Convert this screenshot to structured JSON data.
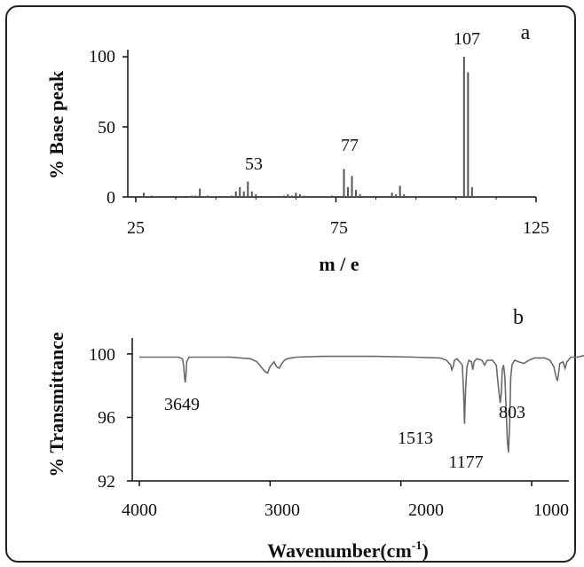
{
  "chart_data": [
    {
      "type": "bar",
      "panel_label": "a",
      "xlabel": "m / e",
      "ylabel": "% Base peak",
      "xlim": [
        25,
        125
      ],
      "ylim": [
        0,
        100
      ],
      "x_ticks": [
        "25",
        "75",
        "125"
      ],
      "y_ticks": [
        "0",
        "50",
        "100"
      ],
      "peak_labels": [
        "53",
        "77",
        "107"
      ],
      "peaks": [
        {
          "x": 27,
          "y": 3
        },
        {
          "x": 29,
          "y": 1
        },
        {
          "x": 39,
          "y": 1
        },
        {
          "x": 40,
          "y": 1
        },
        {
          "x": 41,
          "y": 6
        },
        {
          "x": 43,
          "y": 1
        },
        {
          "x": 49,
          "y": 1
        },
        {
          "x": 50,
          "y": 4
        },
        {
          "x": 51,
          "y": 7
        },
        {
          "x": 52,
          "y": 4
        },
        {
          "x": 53,
          "y": 11
        },
        {
          "x": 54,
          "y": 4
        },
        {
          "x": 55,
          "y": 2
        },
        {
          "x": 62,
          "y": 1
        },
        {
          "x": 63,
          "y": 2
        },
        {
          "x": 64,
          "y": 1
        },
        {
          "x": 65,
          "y": 3
        },
        {
          "x": 66,
          "y": 2
        },
        {
          "x": 67,
          "y": 1
        },
        {
          "x": 74,
          "y": 1
        },
        {
          "x": 77,
          "y": 20
        },
        {
          "x": 78,
          "y": 7
        },
        {
          "x": 79,
          "y": 15
        },
        {
          "x": 80,
          "y": 5
        },
        {
          "x": 81,
          "y": 2
        },
        {
          "x": 89,
          "y": 3
        },
        {
          "x": 90,
          "y": 2
        },
        {
          "x": 91,
          "y": 8
        },
        {
          "x": 92,
          "y": 2
        },
        {
          "x": 107,
          "y": 100
        },
        {
          "x": 108,
          "y": 89
        },
        {
          "x": 109,
          "y": 7
        }
      ]
    },
    {
      "type": "line",
      "panel_label": "b",
      "xlabel": "Wavenumber(cm",
      "xlabel_sup": "-1",
      "xlabel_end": ")",
      "ylabel": "% Transmittance",
      "xlim": [
        4000,
        500
      ],
      "ylim": [
        92,
        101
      ],
      "x_ticks": [
        "4000",
        "3000",
        "2000",
        "1000"
      ],
      "y_ticks": [
        "92",
        "96",
        "100"
      ],
      "peak_labels": [
        "3649",
        "1513",
        "1177",
        "803"
      ],
      "x": [
        4000,
        3700,
        3670,
        3660,
        3655,
        3649,
        3643,
        3638,
        3620,
        3300,
        3150,
        3100,
        3070,
        3040,
        3020,
        3000,
        2970,
        2950,
        2930,
        2910,
        2890,
        2870,
        2840,
        2800,
        2600,
        2200,
        1900,
        1700,
        1650,
        1620,
        1610,
        1600,
        1590,
        1570,
        1530,
        1520,
        1513,
        1505,
        1495,
        1480,
        1460,
        1450,
        1440,
        1420,
        1380,
        1360,
        1340,
        1300,
        1270,
        1255,
        1240,
        1232,
        1225,
        1215,
        1205,
        1195,
        1185,
        1177,
        1168,
        1160,
        1150,
        1130,
        1100,
        1060,
        1020,
        980,
        900,
        860,
        830,
        815,
        803,
        795,
        785,
        760,
        745,
        730,
        700,
        650,
        600,
        550
      ],
      "y": [
        99.8,
        99.8,
        99.7,
        99.2,
        98.6,
        98.2,
        98.7,
        99.5,
        99.8,
        99.8,
        99.7,
        99.5,
        99.2,
        98.9,
        98.8,
        99.2,
        99.5,
        99.2,
        99.1,
        99.4,
        99.6,
        99.7,
        99.75,
        99.8,
        99.85,
        99.85,
        99.8,
        99.75,
        99.6,
        99.3,
        99.0,
        99.2,
        99.6,
        99.7,
        99.3,
        97.5,
        95.6,
        97.8,
        99.2,
        99.6,
        99.5,
        99.0,
        99.5,
        99.7,
        99.6,
        99.3,
        99.6,
        99.6,
        99.3,
        98.0,
        96.9,
        97.5,
        99.0,
        99.3,
        98.6,
        96.5,
        94.5,
        93.8,
        95.5,
        98.5,
        99.3,
        99.6,
        99.5,
        99.4,
        99.6,
        99.75,
        99.75,
        99.6,
        99.2,
        98.6,
        98.3,
        98.7,
        99.4,
        99.5,
        99.1,
        99.5,
        99.8,
        99.8,
        99.9,
        99.8
      ]
    }
  ]
}
